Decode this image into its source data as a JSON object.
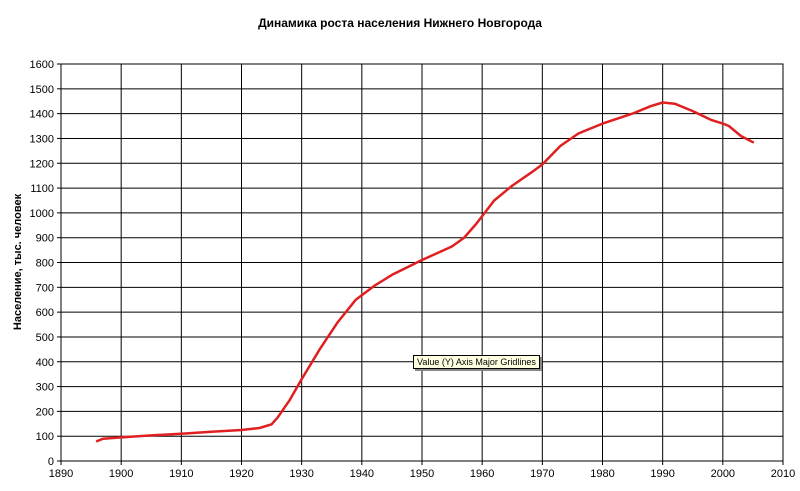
{
  "chart_data": {
    "type": "line",
    "title": "Динамика роста населения Нижнего Новгорода",
    "xlabel": "",
    "ylabel": "Население, тыс. человек",
    "xlim": [
      1890,
      2010
    ],
    "ylim": [
      0,
      1600
    ],
    "x_ticks": [
      1890,
      1900,
      1910,
      1920,
      1930,
      1940,
      1950,
      1960,
      1970,
      1980,
      1990,
      2000,
      2010
    ],
    "y_ticks": [
      0,
      100,
      200,
      300,
      400,
      500,
      600,
      700,
      800,
      900,
      1000,
      1100,
      1200,
      1300,
      1400,
      1500,
      1600
    ],
    "grid": true,
    "series": [
      {
        "color": "#e02020",
        "x": [
          1896,
          1897,
          1900,
          1905,
          1910,
          1915,
          1920,
          1923,
          1925,
          1926,
          1928,
          1930,
          1933,
          1936,
          1939,
          1942,
          1945,
          1950,
          1955,
          1957,
          1959,
          1962,
          1965,
          1968,
          1970,
          1973,
          1976,
          1980,
          1985,
          1988,
          1990,
          1992,
          1995,
          1998,
          2000,
          2001,
          2003,
          2005
        ],
        "y": [
          80,
          90,
          95,
          103,
          110,
          118,
          125,
          133,
          148,
          175,
          245,
          330,
          450,
          560,
          650,
          705,
          750,
          810,
          865,
          900,
          955,
          1050,
          1110,
          1160,
          1195,
          1270,
          1320,
          1360,
          1400,
          1430,
          1445,
          1440,
          1410,
          1375,
          1360,
          1350,
          1310,
          1285
        ]
      }
    ]
  },
  "tooltip": "Value (Y) Axis Major Gridlines"
}
